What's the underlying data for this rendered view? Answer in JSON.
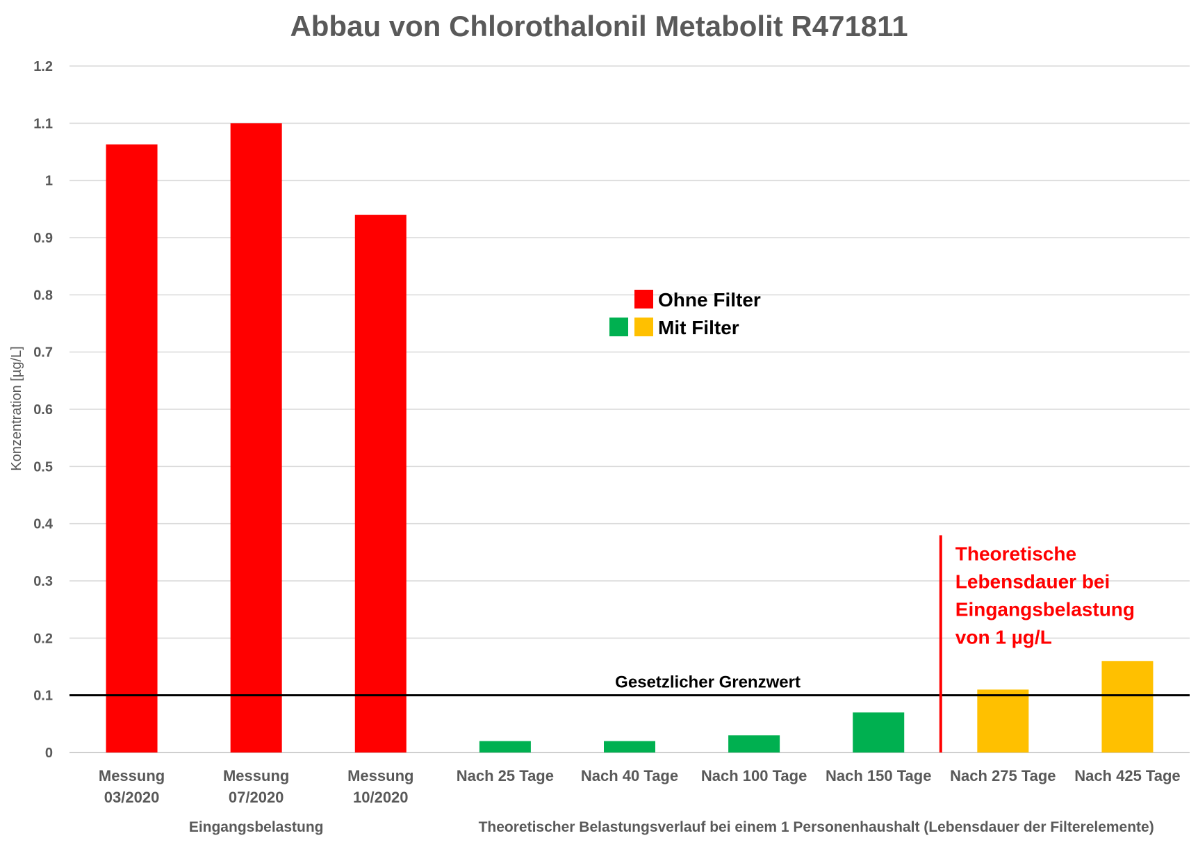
{
  "chart_data": {
    "type": "bar",
    "title": "Abbau von Chlorothalonil Metabolit R471811",
    "ylabel": "Konzentration [µg/L]",
    "ylim": [
      0,
      1.2
    ],
    "yticks": [
      "0",
      "0.1",
      "0.2",
      "0.3",
      "0.4",
      "0.5",
      "0.6",
      "0.7",
      "0.8",
      "0.9",
      "1",
      "1.1",
      "1.2"
    ],
    "grid": true,
    "categories": [
      [
        "Messung",
        "03/2020"
      ],
      [
        "Messung",
        "07/2020"
      ],
      [
        "Messung",
        "10/2020"
      ],
      [
        "Nach 25 Tage"
      ],
      [
        "Nach 40 Tage"
      ],
      [
        "Nach 100 Tage"
      ],
      [
        "Nach 150 Tage"
      ],
      [
        "Nach 275 Tage"
      ],
      [
        "Nach 425 Tage"
      ]
    ],
    "values": [
      1.063,
      1.1,
      0.94,
      0.02,
      0.02,
      0.03,
      0.07,
      0.11,
      0.16
    ],
    "bar_colors": [
      "#ff0000",
      "#ff0000",
      "#ff0000",
      "#00b050",
      "#00b050",
      "#00b050",
      "#00b050",
      "#ffc000",
      "#ffc000"
    ],
    "groups": [
      {
        "label": "Eingangsbelastung",
        "from": 0,
        "to": 2
      },
      {
        "label": "Theoretischer Belastungsverlauf bei einem 1 Personenhaushalt (Lebensdauer der Filterelemente)",
        "from": 3,
        "to": 8
      }
    ],
    "legend": {
      "placement": "center",
      "entries": [
        {
          "label": "Ohne Filter",
          "colors": [
            "#ff0000"
          ]
        },
        {
          "label": "Mit Filter",
          "colors": [
            "#00b050",
            "#ffc000"
          ]
        }
      ]
    },
    "reference_line": {
      "label": "Gesetzlicher Grenzwert",
      "value": 0.1,
      "color": "#000000"
    },
    "marker_line": {
      "label": [
        "Theoretische",
        "Lebensdauer bei",
        "Eingangsbelastung",
        "von 1 µg/L"
      ],
      "between": [
        6,
        7
      ],
      "value": 0.37,
      "color": "#ff0000"
    }
  }
}
